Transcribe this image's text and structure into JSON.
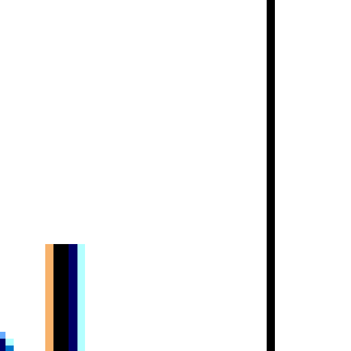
{
  "colors": {
    "background": "#ffffff",
    "divider": "#000000",
    "stripes": [
      "#f7b26b",
      "#000000",
      "#000066",
      "#b3ffff"
    ],
    "fragment": [
      "#66aaff",
      "#000066",
      "#b3ffff",
      "#0077cc"
    ]
  }
}
